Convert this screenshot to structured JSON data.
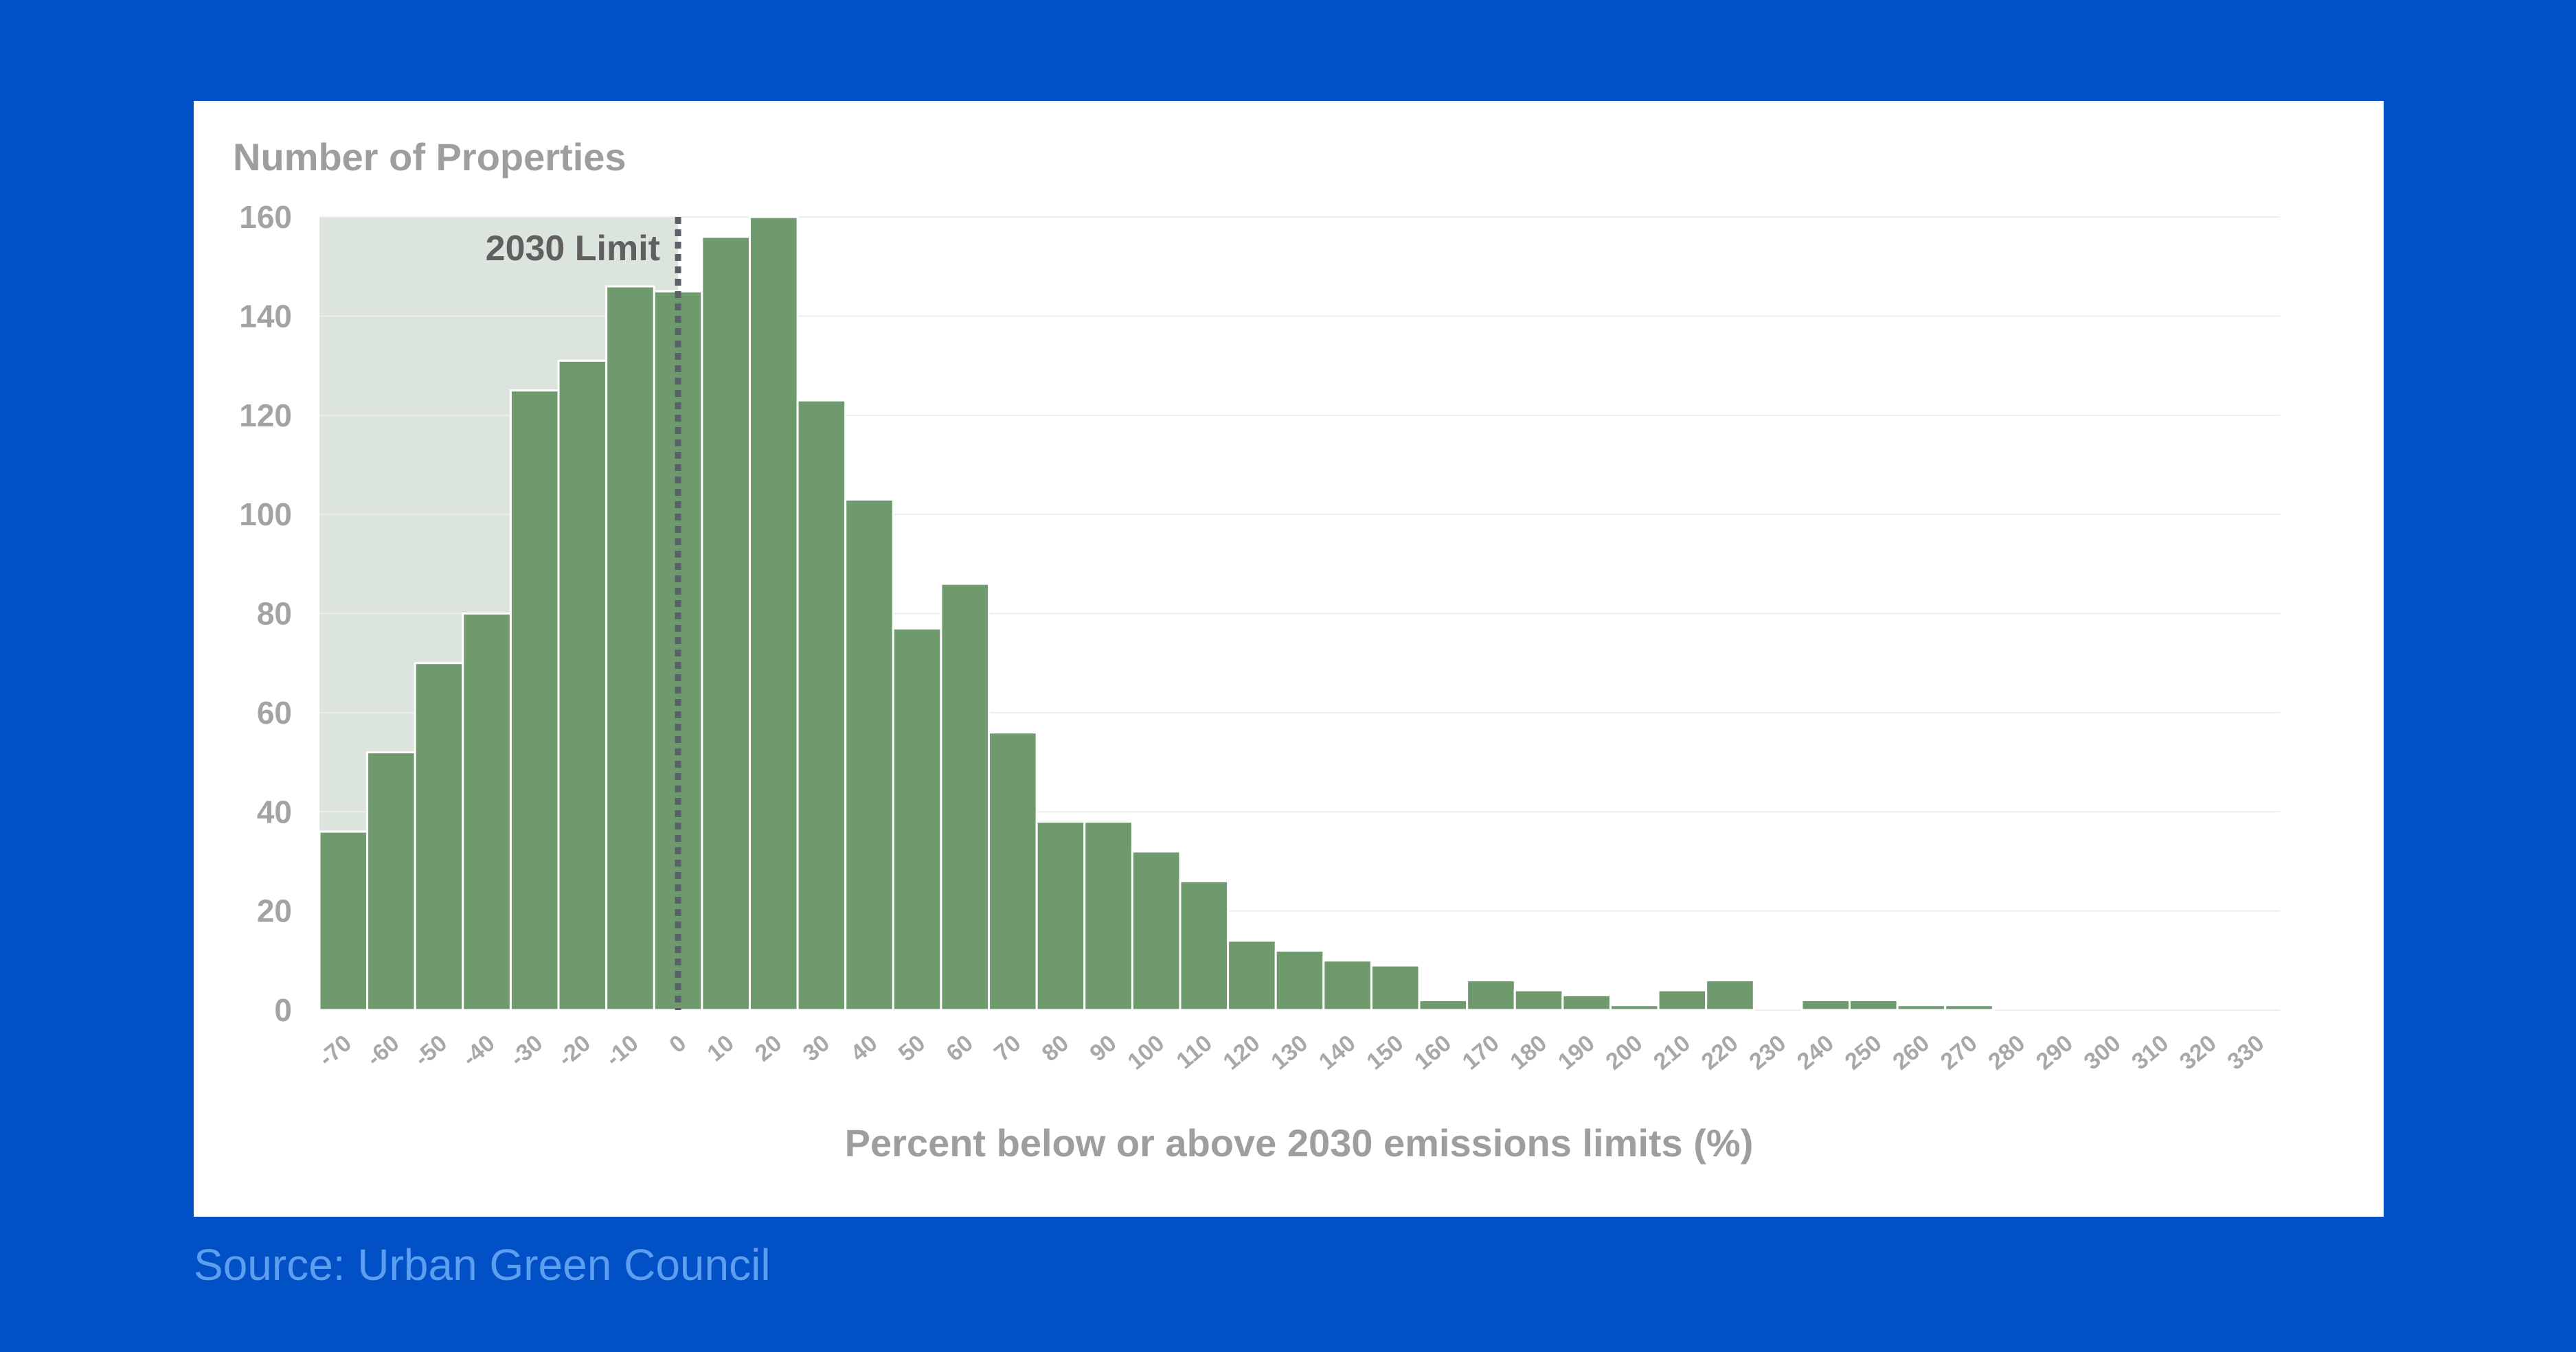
{
  "colors": {
    "background": "#0250C5",
    "card": "#FFFFFF",
    "bar": "#6F9A6E",
    "bar_stroke": "#FFFFFF",
    "shade": "#DCE5DD",
    "grid": "#EDEDED",
    "limit_line": "#5A6068",
    "source_text": "#5C9EF0"
  },
  "source": "Source: Urban Green Council",
  "chart_data": {
    "type": "bar",
    "title": "",
    "ylabel": "Number of Properties",
    "xlabel": "Percent below or above 2030 emissions limits (%)",
    "ylim": [
      0,
      160
    ],
    "yticks": [
      0,
      20,
      40,
      60,
      80,
      100,
      120,
      140,
      160
    ],
    "grid": true,
    "categories": [
      "-70",
      "-60",
      "-50",
      "-40",
      "-30",
      "-20",
      "-10",
      "0",
      "10",
      "20",
      "30",
      "40",
      "50",
      "60",
      "70",
      "80",
      "90",
      "100",
      "110",
      "120",
      "130",
      "140",
      "150",
      "160",
      "170",
      "180",
      "190",
      "200",
      "210",
      "220",
      "230",
      "240",
      "250",
      "260",
      "270",
      "280",
      "290",
      "300",
      "310",
      "320",
      "330"
    ],
    "values": [
      36,
      52,
      70,
      80,
      125,
      131,
      146,
      145,
      156,
      160,
      123,
      103,
      77,
      86,
      56,
      38,
      38,
      32,
      26,
      14,
      12,
      10,
      9,
      2,
      6,
      4,
      3,
      1,
      4,
      6,
      0,
      2,
      2,
      1,
      1,
      0,
      0,
      0,
      0,
      0,
      0
    ],
    "annotation": {
      "label": "2030 Limit",
      "x": "0",
      "shaded_region": [
        "-70",
        "0"
      ]
    }
  }
}
